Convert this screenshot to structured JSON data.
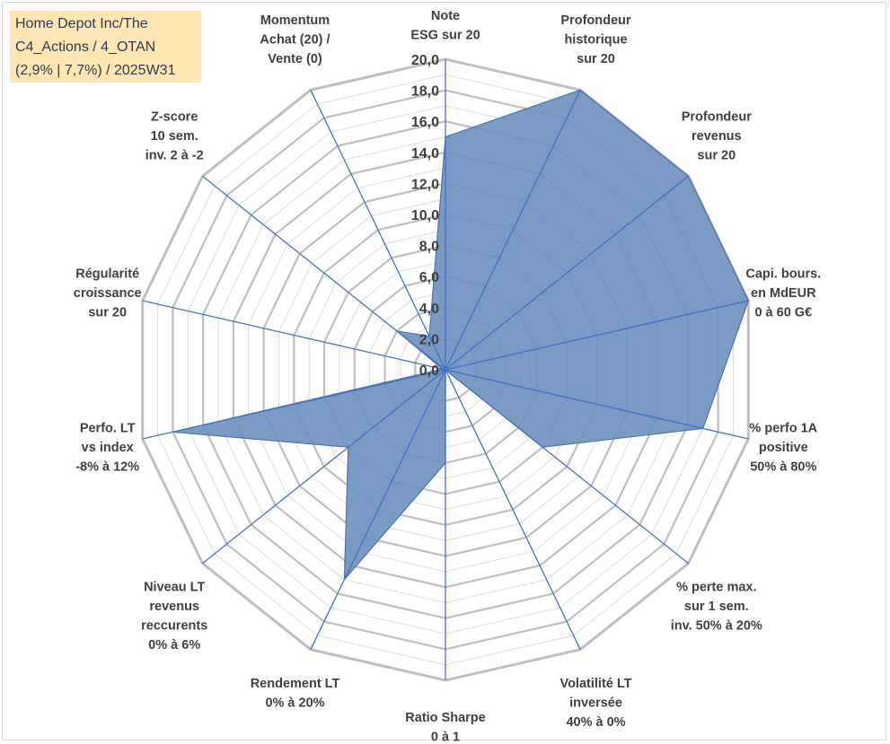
{
  "infobox": {
    "line1": "Home Depot Inc/The",
    "line2": "C4_Actions / 4_OTAN",
    "line3": "(2,9% | 7,7%) / 2025W31"
  },
  "chart_data": {
    "type": "radar",
    "categories": [
      [
        "Note",
        "ESG sur 20"
      ],
      [
        "Profondeur",
        "historique",
        "sur 20"
      ],
      [
        "Profondeur",
        "revenus",
        "sur 20"
      ],
      [
        "Capi. bours.",
        "en MdEUR",
        "0 à 60 G€"
      ],
      [
        "% perfo 1A",
        "positive",
        "50% à 80%"
      ],
      [
        "% perte max.",
        "sur 1 sem.",
        "inv. 50% à 20%"
      ],
      [
        "Volatilité LT",
        "inversée",
        "40% à 0%"
      ],
      [
        "Ratio Sharpe",
        "0 à 1"
      ],
      [
        "Rendement LT",
        "0% à 20%"
      ],
      [
        "Niveau LT",
        "revenus",
        "reccurents",
        "0% à 6%"
      ],
      [
        "Perfo. LT",
        "vs index",
        "-8% à 12%"
      ],
      [
        "Régularité",
        "croissance",
        "sur 20"
      ],
      [
        "Z-score",
        "10 sem.",
        "inv. 2 à -2"
      ],
      [
        "Momentum",
        "Achat (20) /",
        "Vente (0)"
      ]
    ],
    "values": [
      15.0,
      20.0,
      20.0,
      20.0,
      17.0,
      8.0,
      0.0,
      6.0,
      15.0,
      8.0,
      18.0,
      0.2,
      4.0,
      2.4
    ],
    "ylim": [
      0,
      20
    ],
    "ticks": [
      "0,0",
      "2,0",
      "4,0",
      "6,0",
      "8,0",
      "10,0",
      "12,0",
      "14,0",
      "16,0",
      "18,0",
      "20,0"
    ],
    "colors": {
      "fill": "#6f93bf",
      "stroke": "#4a72b0",
      "axis": "#4472c4",
      "grid": "#bfbfbf"
    },
    "grid": true,
    "legend": "none"
  }
}
